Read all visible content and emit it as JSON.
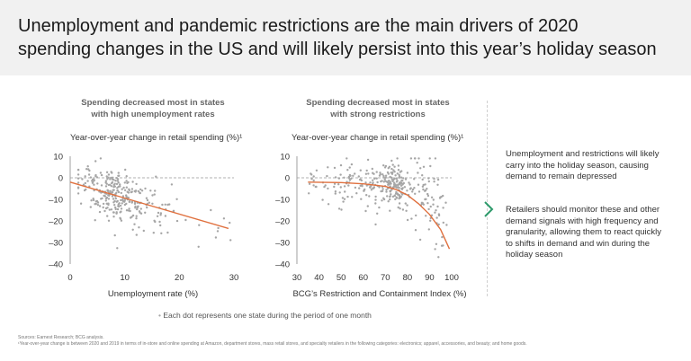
{
  "header": {
    "title_line1": "Unemployment and pandemic restrictions are the main drivers of 2020",
    "title_line2": "spending changes in the US and will likely persist into this year’s holiday season"
  },
  "colors": {
    "dots": "#a6a6a6",
    "trend": "#e0703e",
    "accent": "#2e9a6b"
  },
  "chart_data": [
    {
      "type": "scatter",
      "title_line1": "Spending decreased most in states",
      "title_line2": "with high unemployment rates",
      "ylabel": "Year-over-year change in retail spending (%)¹",
      "xlabel": "Unemployment rate (%)",
      "xlim": [
        0,
        30
      ],
      "ylim": [
        -40,
        10
      ],
      "xticks": [
        "0",
        "10",
        "20",
        "30"
      ],
      "yticks": [
        "10",
        "0",
        "–10",
        "–20",
        "–30",
        "–40"
      ],
      "trend_line": [
        [
          0,
          -2
        ],
        [
          29,
          -23.5
        ]
      ],
      "points": "Approximately 300 state-month observations, concentrated at 3–15% unemployment and 10% to –25% spending change"
    },
    {
      "type": "scatter",
      "title_line1": "Spending decreased most in states",
      "title_line2": "with strong restrictions",
      "ylabel": "Year-over-year change in retail spending (%)¹",
      "xlabel": "BCG’s Restriction and Containment Index (%)",
      "xlim": [
        30,
        100
      ],
      "ylim": [
        -40,
        10
      ],
      "xticks": [
        "30",
        "40",
        "50",
        "60",
        "70",
        "80",
        "90",
        "100"
      ],
      "yticks": [
        "10",
        "0",
        "–10",
        "–20",
        "–30",
        "–40"
      ],
      "trend_curve": [
        [
          35,
          -2
        ],
        [
          50,
          -2.2
        ],
        [
          60,
          -2.8
        ],
        [
          70,
          -4
        ],
        [
          75,
          -5.5
        ],
        [
          80,
          -8
        ],
        [
          85,
          -12
        ],
        [
          90,
          -17
        ],
        [
          95,
          -24
        ],
        [
          99,
          -33
        ]
      ],
      "points": "Approximately 350 state-month observations, concentrated at 60–95% index and 10% to –35% spending change"
    }
  ],
  "note": "Each dot represents one state during the period of one month",
  "sidebar": {
    "p1": "Unemployment and restrictions will likely carry into the holiday season, causing demand to remain depressed",
    "p2": "Retailers should monitor these and other demand signals with high frequency and granularity, allowing them to react quickly to shifts in demand and win during the holiday season"
  },
  "footnotes": {
    "sources": "Sources: Earnest Research; BCG analysis.",
    "note1": "¹Year-over-year change is between 2020 and 2019 in terms of in-store and online spending at Amazon, department stores, mass retail stores, and specialty retailers in the following categories: electronics; apparel, accessories, and beauty; and home goods."
  }
}
